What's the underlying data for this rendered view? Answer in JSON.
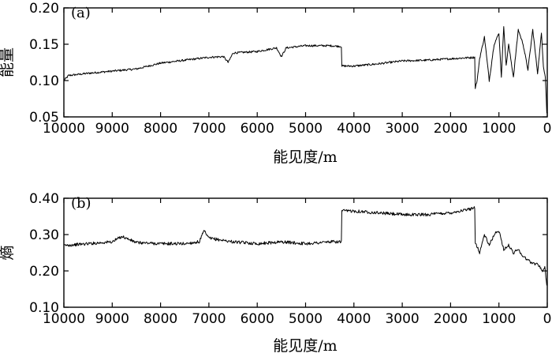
{
  "chart_data": [
    {
      "type": "line",
      "panel_label": "(a)",
      "ylabel": "能量",
      "xlabel": "能见度/m",
      "xlim": [
        10000,
        0
      ],
      "ylim": [
        0.05,
        0.2
      ],
      "x_reversed": true,
      "xticks": [
        10000,
        9000,
        8000,
        7000,
        6000,
        5000,
        4000,
        3000,
        2000,
        1000,
        0
      ],
      "yticks": [
        0.05,
        0.1,
        0.15,
        0.2
      ],
      "ytick_labels": [
        "0.05",
        "0.10",
        "0.15",
        "0.20"
      ],
      "grid": false,
      "series": [
        {
          "color": "#000000",
          "x": [
            10000,
            9900,
            9500,
            9000,
            8500,
            8000,
            7500,
            7000,
            6700,
            6600,
            6500,
            6000,
            5600,
            5500,
            5400,
            5000,
            4500,
            4260,
            4250,
            4000,
            3500,
            3000,
            2500,
            2000,
            1500,
            1490,
            1450,
            1400,
            1300,
            1200,
            1100,
            1000,
            950,
            900,
            850,
            800,
            700,
            600,
            500,
            400,
            300,
            200,
            120,
            80,
            40,
            10
          ],
          "y": [
            0.1,
            0.107,
            0.11,
            0.113,
            0.116,
            0.124,
            0.128,
            0.132,
            0.133,
            0.125,
            0.138,
            0.14,
            0.145,
            0.133,
            0.145,
            0.148,
            0.148,
            0.147,
            0.12,
            0.12,
            0.123,
            0.127,
            0.128,
            0.13,
            0.132,
            0.09,
            0.1,
            0.13,
            0.16,
            0.1,
            0.15,
            0.165,
            0.105,
            0.175,
            0.12,
            0.15,
            0.105,
            0.17,
            0.15,
            0.115,
            0.17,
            0.11,
            0.165,
            0.12,
            0.105,
            0.055
          ]
        }
      ]
    },
    {
      "type": "line",
      "panel_label": "(b)",
      "ylabel": "熵",
      "xlabel": "能见度/m",
      "xlim": [
        10000,
        0
      ],
      "ylim": [
        0.1,
        0.4
      ],
      "x_reversed": true,
      "xticks": [
        10000,
        9000,
        8000,
        7000,
        6000,
        5000,
        4000,
        3000,
        2000,
        1000,
        0
      ],
      "yticks": [
        0.1,
        0.2,
        0.3,
        0.4
      ],
      "ytick_labels": [
        "0.10",
        "0.20",
        "0.30",
        "0.40"
      ],
      "grid": false,
      "series": [
        {
          "color": "#000000",
          "x": [
            10000,
            9500,
            9000,
            8800,
            8500,
            8000,
            7500,
            7200,
            7100,
            7000,
            6500,
            6000,
            5500,
            5000,
            4500,
            4260,
            4250,
            4000,
            3500,
            3000,
            2500,
            2000,
            1600,
            1500,
            1490,
            1400,
            1300,
            1200,
            1100,
            1000,
            900,
            800,
            700,
            600,
            500,
            400,
            300,
            200,
            100,
            50,
            10
          ],
          "y": [
            0.27,
            0.275,
            0.28,
            0.295,
            0.278,
            0.275,
            0.275,
            0.28,
            0.31,
            0.29,
            0.28,
            0.275,
            0.28,
            0.275,
            0.28,
            0.28,
            0.365,
            0.365,
            0.36,
            0.355,
            0.355,
            0.36,
            0.37,
            0.375,
            0.28,
            0.25,
            0.3,
            0.27,
            0.3,
            0.31,
            0.26,
            0.27,
            0.25,
            0.26,
            0.24,
            0.23,
            0.22,
            0.22,
            0.2,
            0.21,
            0.16
          ]
        }
      ]
    }
  ]
}
